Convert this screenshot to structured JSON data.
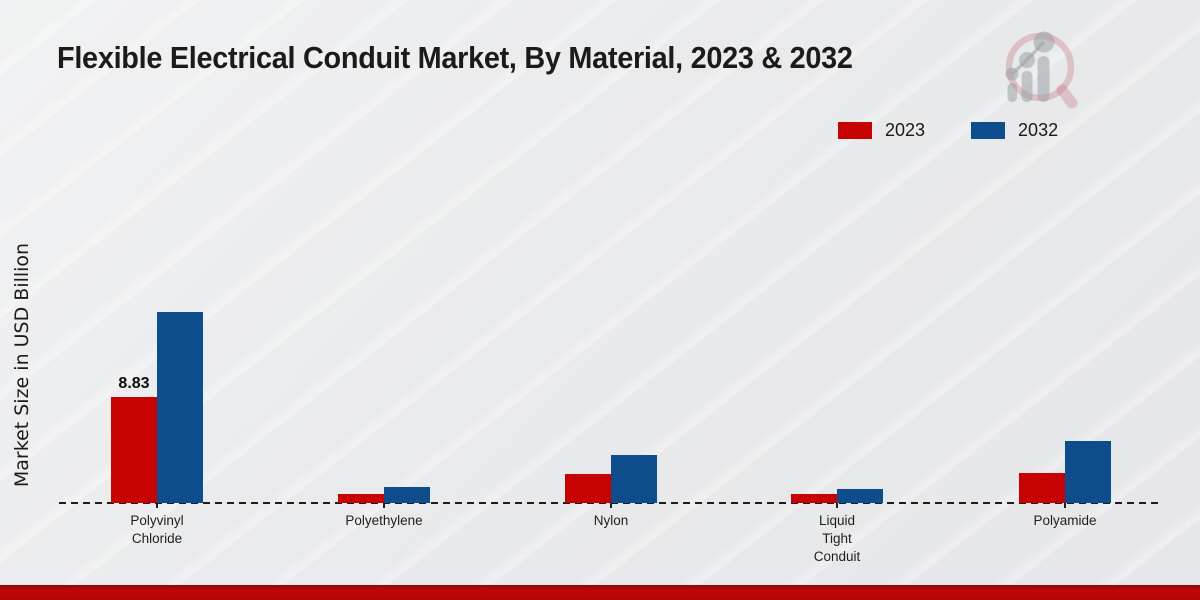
{
  "chart_data": {
    "type": "bar",
    "title": "Flexible Electrical Conduit Market, By Material, 2023 & 2032",
    "ylabel": "Market Size in USD Billion",
    "xlabel": "",
    "categories": [
      "Polyvinyl Chloride",
      "Polyethylene",
      "Nylon",
      "Liquid Tight Conduit",
      "Polyamide"
    ],
    "category_label_lines": [
      [
        "Polyvinyl",
        "Chloride"
      ],
      [
        "Polyethylene"
      ],
      [
        "Nylon"
      ],
      [
        "Liquid",
        "Tight",
        "Conduit"
      ],
      [
        "Polyamide"
      ]
    ],
    "series": [
      {
        "name": "2023",
        "color": "#c70202",
        "values": [
          8.83,
          0.75,
          2.45,
          0.72,
          2.5
        ],
        "value_labels": [
          "8.83",
          "",
          "",
          "",
          ""
        ]
      },
      {
        "name": "2032",
        "color": "#0d4d8c",
        "values": [
          15.9,
          1.3,
          4.0,
          1.2,
          5.2
        ],
        "value_labels": [
          "",
          "",
          "",
          "",
          ""
        ]
      }
    ],
    "legend": {
      "position": "top-right",
      "items": [
        "2023",
        "2032"
      ]
    },
    "baseline": {
      "value": 0,
      "style": "dashed",
      "color": "#1d1d1d"
    },
    "ylim": [
      0,
      17
    ],
    "grid": false
  },
  "branding": {
    "logo_icon": "magnifier-bar-chart-watermark-logo",
    "accent_bar_color": "#b40707",
    "logo_ring_color": "rgba(196,130,138,0.38)",
    "logo_figure_color": "rgba(155,160,166,0.55)"
  }
}
